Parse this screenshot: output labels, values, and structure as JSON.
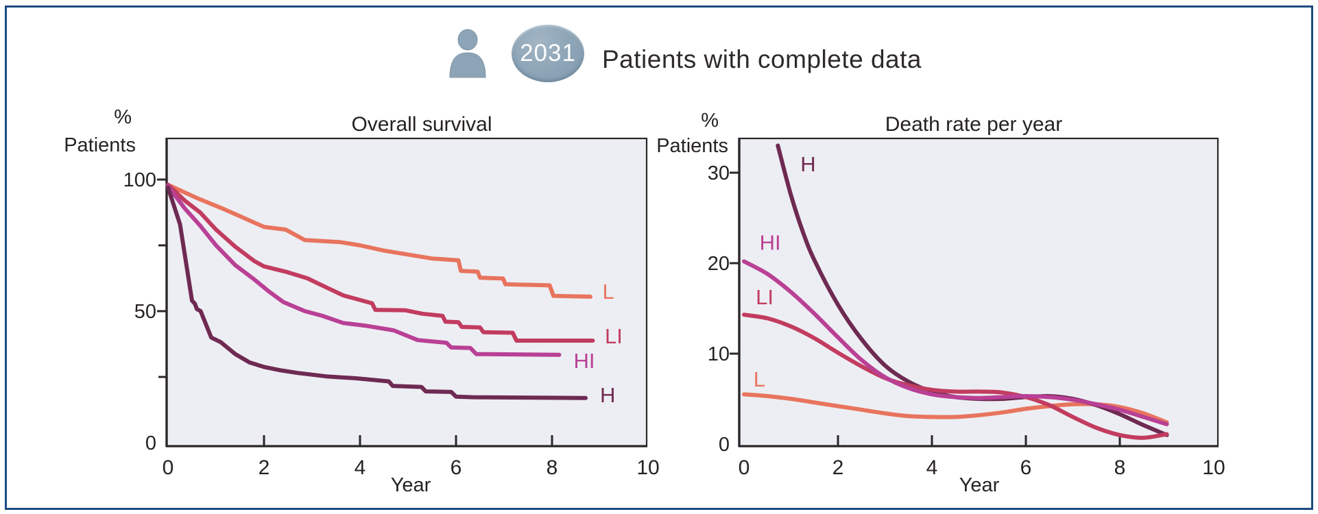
{
  "figure": {
    "border_color": "#1B4B80",
    "background": "#FFFFFF",
    "plot_background": "#EDEEF3",
    "axis_color": "#2B2728"
  },
  "header": {
    "count_badge": "2031",
    "caption": "Patients with complete data",
    "icon_color": "#8CA4B6"
  },
  "chart_data": [
    {
      "type": "line",
      "title": "Overall survival",
      "ylabel_line1": "%",
      "ylabel_line2": "Patients",
      "xlabel": "Year",
      "xlim": [
        0,
        10.2
      ],
      "ylim": [
        0,
        116
      ],
      "x_ticks_labeled": [
        0,
        2,
        4,
        6,
        8,
        10
      ],
      "x_ticks_marked": [
        2,
        4,
        6,
        8
      ],
      "y_ticks_major": [
        0,
        50,
        100
      ],
      "y_ticks_minor": [
        25,
        75
      ],
      "grid": false,
      "legend_position": "line-end-labels",
      "series": [
        {
          "name": "L",
          "color": "#E8745E",
          "smooth": false,
          "points": [
            [
              0,
              98
            ],
            [
              0.6,
              93
            ],
            [
              1.2,
              88.5
            ],
            [
              2,
              82
            ],
            [
              2.45,
              81
            ],
            [
              2.85,
              77
            ],
            [
              3.6,
              76.2
            ],
            [
              4,
              75
            ],
            [
              4.5,
              73
            ],
            [
              5,
              71.5
            ],
            [
              5.5,
              70
            ],
            [
              6.05,
              69.3
            ],
            [
              6.1,
              65.3
            ],
            [
              6.45,
              65
            ],
            [
              6.5,
              62.7
            ],
            [
              6.98,
              62.4
            ],
            [
              7.03,
              60.2
            ],
            [
              7.95,
              59.8
            ],
            [
              8.03,
              55.8
            ],
            [
              8.8,
              55.5
            ]
          ]
        },
        {
          "name": "LI",
          "color": "#C23C60",
          "smooth": false,
          "points": [
            [
              0,
              98
            ],
            [
              0.35,
              92
            ],
            [
              0.67,
              87.5
            ],
            [
              1,
              81
            ],
            [
              1.4,
              74.5
            ],
            [
              1.8,
              69
            ],
            [
              2,
              67
            ],
            [
              2.45,
              65
            ],
            [
              2.9,
              62.5
            ],
            [
              3.3,
              59
            ],
            [
              3.65,
              56
            ],
            [
              4.25,
              53
            ],
            [
              4.32,
              50.5
            ],
            [
              4.95,
              50.3
            ],
            [
              5.3,
              49
            ],
            [
              5.72,
              48.2
            ],
            [
              5.78,
              46
            ],
            [
              6.05,
              45.8
            ],
            [
              6.12,
              44
            ],
            [
              6.5,
              43.8
            ],
            [
              6.57,
              42
            ],
            [
              7.18,
              41.8
            ],
            [
              7.26,
              38.8
            ],
            [
              8.85,
              38.8
            ]
          ]
        },
        {
          "name": "HI",
          "color": "#B94095",
          "smooth": false,
          "points": [
            [
              0,
              97.5
            ],
            [
              0.35,
              89
            ],
            [
              0.67,
              82.5
            ],
            [
              1,
              75
            ],
            [
              1.4,
              67.5
            ],
            [
              1.8,
              62
            ],
            [
              2.1,
              57.5
            ],
            [
              2.4,
              53.5
            ],
            [
              2.85,
              50
            ],
            [
              3.2,
              48.3
            ],
            [
              3.65,
              45.5
            ],
            [
              4.1,
              44.5
            ],
            [
              4.7,
              42.7
            ],
            [
              5.2,
              39
            ],
            [
              5.8,
              38
            ],
            [
              5.9,
              36.2
            ],
            [
              6.3,
              36
            ],
            [
              6.42,
              33.7
            ],
            [
              8.15,
              33.4
            ]
          ]
        },
        {
          "name": "H",
          "color": "#6E2A52",
          "smooth": false,
          "points": [
            [
              0,
              97
            ],
            [
              0.25,
              83
            ],
            [
              0.5,
              54
            ],
            [
              0.56,
              52.8
            ],
            [
              0.6,
              50.8
            ],
            [
              0.68,
              50
            ],
            [
              0.9,
              40
            ],
            [
              1.1,
              38.2
            ],
            [
              1.4,
              33.7
            ],
            [
              1.7,
              30.5
            ],
            [
              2,
              28.8
            ],
            [
              2.35,
              27.5
            ],
            [
              2.7,
              26.5
            ],
            [
              3.3,
              25.2
            ],
            [
              3.9,
              24.5
            ],
            [
              4.6,
              23.3
            ],
            [
              4.68,
              21.6
            ],
            [
              5.28,
              21.2
            ],
            [
              5.37,
              19.5
            ],
            [
              5.9,
              19.3
            ],
            [
              6,
              17.5
            ],
            [
              6.35,
              17.3
            ],
            [
              8.7,
              17
            ]
          ]
        }
      ],
      "series_labels": [
        {
          "text": "L",
          "x": 9.05,
          "y": 57.5,
          "color": "#E8745E"
        },
        {
          "text": "LI",
          "x": 9.1,
          "y": 40.6,
          "color": "#C23C60"
        },
        {
          "text": "HI",
          "x": 8.45,
          "y": 31.2,
          "color": "#B94095"
        },
        {
          "text": "H",
          "x": 9.0,
          "y": 18.2,
          "color": "#6E2A52"
        }
      ]
    },
    {
      "type": "line",
      "title": "Death rate per year",
      "ylabel_line1": "%",
      "ylabel_line2": "Patients",
      "xlabel": "Year",
      "xlim": [
        0,
        10.1
      ],
      "ylim": [
        0,
        33.8
      ],
      "x_ticks_labeled": [
        0,
        2,
        4,
        6,
        8,
        10
      ],
      "x_ticks_marked": [
        2,
        4,
        6,
        8
      ],
      "y_ticks_major": [
        0,
        10,
        20,
        30
      ],
      "y_ticks_minor": [],
      "grid": false,
      "legend_position": "line-start-labels",
      "series": [
        {
          "name": "L",
          "color": "#E8745E",
          "smooth": true,
          "points": [
            [
              0,
              5.5
            ],
            [
              0.5,
              5.3
            ],
            [
              1,
              5.0
            ],
            [
              1.5,
              4.6
            ],
            [
              2,
              4.2
            ],
            [
              2.5,
              3.8
            ],
            [
              3,
              3.4
            ],
            [
              3.5,
              3.1
            ],
            [
              4,
              3.0
            ],
            [
              4.5,
              3.0
            ],
            [
              5,
              3.2
            ],
            [
              5.5,
              3.5
            ],
            [
              6,
              3.9
            ],
            [
              6.5,
              4.2
            ],
            [
              7,
              4.4
            ],
            [
              7.5,
              4.4
            ],
            [
              8,
              4.1
            ],
            [
              8.5,
              3.4
            ],
            [
              9,
              2.4
            ]
          ]
        },
        {
          "name": "H",
          "color": "#6E2A52",
          "smooth": true,
          "points": [
            [
              0.72,
              33
            ],
            [
              1,
              27.5
            ],
            [
              1.25,
              23.5
            ],
            [
              1.5,
              20.3
            ],
            [
              2,
              15.4
            ],
            [
              2.5,
              11.6
            ],
            [
              3,
              8.7
            ],
            [
              3.5,
              6.9
            ],
            [
              4,
              5.8
            ],
            [
              4.5,
              5.2
            ],
            [
              5,
              5.0
            ],
            [
              5.5,
              5.0
            ],
            [
              6,
              5.2
            ],
            [
              6.5,
              5.3
            ],
            [
              7,
              5.0
            ],
            [
              7.5,
              4.3
            ],
            [
              8,
              3.3
            ],
            [
              8.5,
              2.1
            ],
            [
              9,
              1.0
            ]
          ]
        },
        {
          "name": "LI",
          "color": "#C23C60",
          "smooth": true,
          "points": [
            [
              0,
              14.3
            ],
            [
              0.5,
              13.9
            ],
            [
              1,
              13.0
            ],
            [
              1.5,
              11.7
            ],
            [
              2,
              10.1
            ],
            [
              2.5,
              8.6
            ],
            [
              3,
              7.3
            ],
            [
              3.5,
              6.5
            ],
            [
              4,
              6.0
            ],
            [
              4.5,
              5.8
            ],
            [
              5,
              5.8
            ],
            [
              5.5,
              5.7
            ],
            [
              6,
              5.2
            ],
            [
              6.5,
              4.3
            ],
            [
              7,
              3.0
            ],
            [
              7.5,
              1.8
            ],
            [
              8,
              1.0
            ],
            [
              8.5,
              0.7
            ],
            [
              9,
              1.1
            ]
          ]
        },
        {
          "name": "HI",
          "color": "#B94095",
          "smooth": true,
          "points": [
            [
              0,
              20.2
            ],
            [
              0.5,
              18.8
            ],
            [
              1,
              16.8
            ],
            [
              1.5,
              14.4
            ],
            [
              2,
              11.8
            ],
            [
              2.5,
              9.3
            ],
            [
              3,
              7.4
            ],
            [
              3.5,
              6.2
            ],
            [
              4,
              5.5
            ],
            [
              4.5,
              5.2
            ],
            [
              5,
              5.1
            ],
            [
              5.5,
              5.2
            ],
            [
              6,
              5.3
            ],
            [
              6.5,
              5.2
            ],
            [
              7,
              4.9
            ],
            [
              7.5,
              4.4
            ],
            [
              8,
              3.8
            ],
            [
              8.5,
              3.0
            ],
            [
              9,
              2.2
            ]
          ]
        }
      ],
      "series_labels": [
        {
          "text": "H",
          "x": 1.2,
          "y": 31.0,
          "color": "#6E2A52"
        },
        {
          "text": "HI",
          "x": 0.33,
          "y": 22.3,
          "color": "#B94095"
        },
        {
          "text": "LI",
          "x": 0.25,
          "y": 16.3,
          "color": "#C23C60"
        },
        {
          "text": "L",
          "x": 0.2,
          "y": 7.2,
          "color": "#E8745E"
        }
      ]
    }
  ]
}
